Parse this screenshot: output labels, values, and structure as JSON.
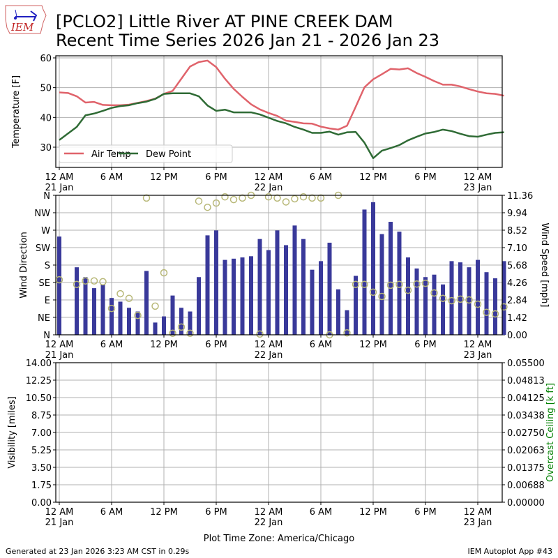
{
  "header": {
    "logo_text": "IEM",
    "title_line1": "[PCLO2] Little River  AT PINE CREEK DAM",
    "title_line2": "Recent Time Series 2026 Jan 21 - 2026 Jan 23"
  },
  "footer": {
    "generated": "Generated at 23 Jan 2026 3:23 AM CST in 0.29s",
    "app": "IEM Autoplot App #43"
  },
  "colors": {
    "air_temp": "#e0636b",
    "dew_point": "#2f6b35",
    "wind_bar": "#39399a",
    "wind_dir": "#b8b878",
    "ceiling_label": "#008000"
  },
  "chart_data": [
    {
      "type": "line",
      "name": "temperature",
      "ylabel": "Temperature [F]",
      "ylim": [
        23.2,
        60.7
      ],
      "yticks": [
        30,
        40,
        50,
        60
      ],
      "xlim_hours": [
        -0.4,
        50.8
      ],
      "legend": {
        "placement": "lower-left",
        "entries": [
          "Air Temp",
          "Dew Point"
        ]
      },
      "x_hours": [
        0,
        1,
        2,
        3,
        4,
        5,
        6,
        7,
        8,
        9,
        10,
        11,
        12,
        13,
        14,
        15,
        16,
        17,
        18,
        19,
        20,
        21,
        22,
        23,
        24,
        25,
        26,
        27,
        28,
        29,
        30,
        31,
        32,
        33,
        34,
        35,
        36,
        37,
        38,
        39,
        40,
        41,
        42,
        43,
        44,
        45,
        46,
        47,
        48,
        49,
        50,
        51
      ],
      "series": [
        {
          "name": "Air Temp",
          "values": [
            48.4,
            48.2,
            47.1,
            45.0,
            45.2,
            44.2,
            44.1,
            44.1,
            44.3,
            44.9,
            45.5,
            46.3,
            47.9,
            48.9,
            53.0,
            57.1,
            58.6,
            59.1,
            56.9,
            53.0,
            49.6,
            46.9,
            44.4,
            42.7,
            41.5,
            40.5,
            38.9,
            38.5,
            38.0,
            37.9,
            36.9,
            36.3,
            35.9,
            37.2,
            43.6,
            50.1,
            52.8,
            54.5,
            56.3,
            56.1,
            56.5,
            54.9,
            53.6,
            52.2,
            51.0,
            51.0,
            50.4,
            49.5,
            48.7,
            48.1,
            47.9,
            47.3
          ]
        },
        {
          "name": "Dew Point",
          "values": [
            32.4,
            34.6,
            36.8,
            40.7,
            41.3,
            42.2,
            43.2,
            43.8,
            44.1,
            44.8,
            45.3,
            46.2,
            47.9,
            48.1,
            48.1,
            48.1,
            47.1,
            44.0,
            42.2,
            42.6,
            41.7,
            41.7,
            41.7,
            41.0,
            39.9,
            38.8,
            38.0,
            36.8,
            35.9,
            34.8,
            34.8,
            35.2,
            34.2,
            35.0,
            35.1,
            31.5,
            26.3,
            28.8,
            29.7,
            30.7,
            32.3,
            33.5,
            34.6,
            35.1,
            35.9,
            35.4,
            34.5,
            33.7,
            33.5,
            34.2,
            34.8,
            35.0
          ]
        }
      ]
    },
    {
      "type": "bar+scatter",
      "name": "wind",
      "ylabel": "Wind Direction",
      "ylabel_right": "Wind Speed [mph]",
      "ylim_direction": [
        0,
        360
      ],
      "yticks_direction": [
        "N",
        "NE",
        "E",
        "SE",
        "S",
        "SW",
        "W",
        "NW",
        "N"
      ],
      "ylim_speed": [
        0,
        11.36
      ],
      "yticks_speed": [
        "0.00",
        "1.42",
        "2.84",
        "4.26",
        "5.68",
        "7.10",
        "8.52",
        "9.94",
        "11.36"
      ],
      "speed_series": {
        "name": "Wind Speed",
        "x_hours": [
          0,
          2,
          3,
          4,
          5,
          6,
          7,
          8,
          9,
          10,
          11,
          12,
          13,
          14,
          15,
          16,
          17,
          18,
          19,
          20,
          21,
          22,
          23,
          24,
          25,
          26,
          27,
          28,
          29,
          30,
          31,
          32,
          33,
          34,
          35,
          36,
          37,
          38,
          39,
          40,
          41,
          42,
          43,
          44,
          45,
          46,
          47,
          48,
          49,
          50,
          51
        ],
        "values": [
          8.0,
          5.5,
          4.7,
          3.8,
          4.1,
          3.0,
          2.7,
          2.2,
          1.9,
          5.2,
          1.0,
          1.5,
          3.2,
          2.2,
          1.9,
          4.7,
          8.1,
          8.5,
          6.1,
          6.2,
          6.3,
          6.4,
          7.8,
          6.9,
          8.5,
          7.3,
          8.9,
          7.8,
          5.3,
          6.0,
          7.5,
          3.7,
          2.0,
          4.8,
          10.2,
          10.8,
          8.2,
          9.2,
          8.4,
          6.3,
          5.4,
          4.7,
          4.9,
          4.1,
          6.0,
          5.9,
          5.5,
          6.1,
          5.1,
          4.6,
          6.0
        ]
      },
      "direction_series": {
        "name": "Wind Direction",
        "x_hours": [
          0,
          2,
          3,
          4,
          5,
          6,
          7,
          8,
          9,
          10,
          11,
          12,
          13,
          14,
          15,
          16,
          17,
          18,
          19,
          20,
          21,
          22,
          23,
          24,
          25,
          26,
          27,
          28,
          29,
          30,
          31,
          32,
          33,
          34,
          35,
          36,
          37,
          38,
          39,
          40,
          41,
          42,
          43,
          44,
          45,
          46,
          47,
          48,
          49,
          50,
          51
        ],
        "values": [
          142,
          130,
          139,
          139,
          137,
          68,
          106,
          94,
          50,
          353,
          74,
          160,
          4,
          20,
          4,
          345,
          329,
          340,
          356,
          349,
          353,
          360,
          2,
          356,
          353,
          343,
          351,
          356,
          353,
          353,
          0,
          360,
          5,
          130,
          130,
          110,
          99,
          128,
          130,
          115,
          131,
          133,
          108,
          94,
          88,
          92,
          90,
          79,
          58,
          54,
          72
        ]
      }
    },
    {
      "type": "line",
      "name": "visibility",
      "ylabel": "Visibility [miles]",
      "ylabel_right": "Overcast Ceiling [k ft]",
      "ylim": [
        0,
        14
      ],
      "yticks": [
        "0.00",
        "1.75",
        "3.50",
        "5.25",
        "7.00",
        "8.75",
        "10.50",
        "12.25",
        "14.00"
      ],
      "ylim_right": [
        0,
        0.055
      ],
      "yticks_right": [
        "0.00000",
        "0.00688",
        "0.01375",
        "0.02063",
        "0.02750",
        "0.03438",
        "0.04125",
        "0.04813",
        "0.05500"
      ],
      "xlabel": "Plot Time Zone: America/Chicago",
      "series": []
    }
  ],
  "xaxis": {
    "ticks": [
      {
        "hour": 0,
        "line1": "12 AM",
        "line2": "21 Jan"
      },
      {
        "hour": 6,
        "line1": "6 AM",
        "line2": ""
      },
      {
        "hour": 12,
        "line1": "12 PM",
        "line2": ""
      },
      {
        "hour": 18,
        "line1": "6 PM",
        "line2": ""
      },
      {
        "hour": 24,
        "line1": "12 AM",
        "line2": "22 Jan"
      },
      {
        "hour": 30,
        "line1": "6 AM",
        "line2": ""
      },
      {
        "hour": 36,
        "line1": "12 PM",
        "line2": ""
      },
      {
        "hour": 42,
        "line1": "6 PM",
        "line2": ""
      },
      {
        "hour": 48,
        "line1": "12 AM",
        "line2": "23 Jan"
      }
    ]
  }
}
